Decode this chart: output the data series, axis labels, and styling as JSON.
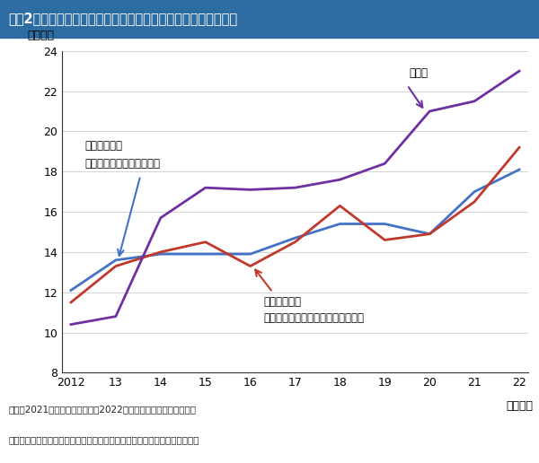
{
  "title": "図表2　国の主な税収の推移（法人が支払った所得税を調整後）",
  "title_bg_color": "#2E6DA4",
  "title_text_color": "#ffffff",
  "ylabel": "（兆円）",
  "xlabel_end": "（年度）",
  "years": [
    2012,
    2013,
    2014,
    2015,
    2016,
    2017,
    2018,
    2019,
    2020,
    2021,
    2022
  ],
  "xtick_labels": [
    "2012",
    "13",
    "14",
    "15",
    "16",
    "17",
    "18",
    "19",
    "20",
    "21",
    "22"
  ],
  "income_tax": [
    12.1,
    13.6,
    13.9,
    13.9,
    13.9,
    14.7,
    15.4,
    15.4,
    14.9,
    17.0,
    18.1
  ],
  "corporate_tax": [
    11.5,
    13.3,
    14.0,
    14.5,
    13.3,
    14.5,
    16.3,
    14.6,
    14.9,
    16.5,
    19.2
  ],
  "consumption_tax": [
    10.4,
    10.8,
    15.7,
    17.2,
    17.1,
    17.2,
    17.6,
    18.4,
    21.0,
    21.5,
    23.0
  ],
  "income_tax_color": "#4472C4",
  "corporate_tax_color": "#C0392B",
  "consumption_tax_color": "#7030A0",
  "ylim_min": 8,
  "ylim_max": 24,
  "yticks": [
    8,
    10,
    12,
    14,
    16,
    18,
    20,
    22,
    24
  ],
  "note1": "（注）2021年度までは実績値、2022年度は大和総研による推計値",
  "note2": "（出所）財務省決算資料、国税庁「会社標本調査」等をもとに大和総研作成",
  "annotation_income_line1": "調整後所得税",
  "annotation_income_line2": "（個人が支払った所得税）",
  "annotation_corporate_line1": "調整後法人税",
  "annotation_corporate_line2": "（法人税＋法人が支払った所得税）",
  "annotation_consumption": "消費税",
  "background_color": "#ffffff"
}
